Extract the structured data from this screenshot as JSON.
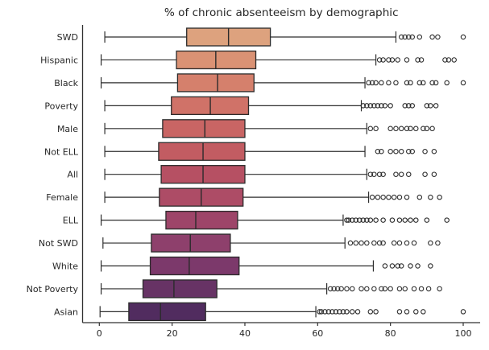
{
  "title": "% of chronic absenteeism by demographic",
  "colors": {
    "background": "#ffffff",
    "spine": "#303030",
    "whisker": "#2e2e2e",
    "box_border": "#2b2b2b",
    "text": "#262626",
    "outlier_stroke": "#2e2e2e"
  },
  "chart_data": {
    "type": "boxplot",
    "orientation": "horizontal",
    "title": "% of chronic absenteeism by demographic",
    "xlabel": "",
    "ylabel": "",
    "x_ticks": [
      0,
      20,
      40,
      60,
      80,
      100
    ],
    "xlim": [
      -5,
      105
    ],
    "grid": false,
    "legend": null,
    "categories": [
      "SWD",
      "Hispanic",
      "Black",
      "Poverty",
      "Male",
      "Not ELL",
      "All",
      "Female",
      "ELL",
      "Not SWD",
      "White",
      "Not Poverty",
      "Asian"
    ],
    "series": [
      {
        "name": "SWD",
        "whisker_low": 1.5,
        "q1": 24.0,
        "median": 35.5,
        "q3": 47.0,
        "whisker_high": 81.5,
        "color": "#dda27e",
        "outliers": [
          83,
          84,
          85,
          86,
          88,
          91.5,
          93,
          100
        ]
      },
      {
        "name": "Hispanic",
        "whisker_low": 0.5,
        "q1": 21.2,
        "median": 32.0,
        "q3": 43.0,
        "whisker_high": 76.0,
        "color": "#da9274",
        "outliers": [
          77,
          78,
          79.5,
          80.5,
          82,
          84.5,
          87.5,
          88.5,
          95,
          96,
          97.5
        ]
      },
      {
        "name": "Black",
        "whisker_low": 0.5,
        "q1": 21.5,
        "median": 32.5,
        "q3": 42.5,
        "whisker_high": 73.0,
        "color": "#d5806c",
        "outliers": [
          74,
          75,
          76,
          77.5,
          79.5,
          81.5,
          84.5,
          85.5,
          88,
          89,
          91.5,
          92.5,
          95.5,
          100
        ]
      },
      {
        "name": "Poverty",
        "whisker_low": 1.5,
        "q1": 19.8,
        "median": 30.5,
        "q3": 41.0,
        "whisker_high": 72.0,
        "color": "#d07268",
        "outliers": [
          72.5,
          73.5,
          74.5,
          75.5,
          76.5,
          77.5,
          78.5,
          80,
          84,
          85,
          86,
          90,
          91,
          92.5
        ]
      },
      {
        "name": "Male",
        "whisker_low": 1.5,
        "q1": 17.4,
        "median": 29.0,
        "q3": 40.0,
        "whisker_high": 73.5,
        "color": "#c96564",
        "outliers": [
          74.5,
          76,
          80,
          81.5,
          83,
          84.5,
          85.5,
          87,
          89,
          90,
          91.5
        ]
      },
      {
        "name": "Not ELL",
        "whisker_low": 1.5,
        "q1": 16.3,
        "median": 28.5,
        "q3": 40.0,
        "whisker_high": 73.0,
        "color": "#c25c62",
        "outliers": [
          76.5,
          77.5,
          80,
          81.5,
          83,
          85,
          86,
          89.5,
          92
        ]
      },
      {
        "name": "All",
        "whisker_low": 1.5,
        "q1": 17.0,
        "median": 28.5,
        "q3": 40.0,
        "whisker_high": 73.5,
        "color": "#b65063",
        "outliers": [
          74.5,
          75.5,
          77,
          78,
          81.5,
          83,
          85,
          89.5,
          92
        ]
      },
      {
        "name": "Female",
        "whisker_low": 1.5,
        "q1": 16.5,
        "median": 28.0,
        "q3": 39.5,
        "whisker_high": 74.0,
        "color": "#ad4c66",
        "outliers": [
          75,
          76.5,
          78,
          79.5,
          81,
          82.5,
          84.5,
          88,
          91,
          93.5
        ]
      },
      {
        "name": "ELL",
        "whisker_low": 0.5,
        "q1": 18.3,
        "median": 26.5,
        "q3": 38.0,
        "whisker_high": 67.0,
        "color": "#9e4569",
        "outliers": [
          68,
          68.5,
          69.5,
          70.5,
          71.5,
          72.5,
          73.5,
          74.5,
          76,
          78,
          80.5,
          82.5,
          84,
          85.5,
          87,
          90,
          95.5
        ]
      },
      {
        "name": "Not SWD",
        "whisker_low": 1.0,
        "q1": 14.3,
        "median": 25.0,
        "q3": 36.0,
        "whisker_high": 67.5,
        "color": "#8e406c",
        "outliers": [
          69,
          70.5,
          72,
          73.5,
          75.5,
          77,
          78,
          81,
          82.5,
          84.5,
          86.5,
          91,
          93
        ]
      },
      {
        "name": "White",
        "whisker_low": 0.5,
        "q1": 14.0,
        "median": 24.7,
        "q3": 38.4,
        "whisker_high": 75.3,
        "color": "#7c396b",
        "outliers": [
          78.5,
          80.5,
          82,
          83,
          85.5,
          87.5,
          91
        ]
      },
      {
        "name": "Not Poverty",
        "whisker_low": 0.5,
        "q1": 12.0,
        "median": 20.5,
        "q3": 32.3,
        "whisker_high": 62.5,
        "color": "#673365",
        "outliers": [
          63.5,
          64.5,
          65.5,
          66.5,
          68,
          69.5,
          72,
          73.5,
          75.5,
          77.5,
          78.5,
          80,
          82.5,
          84,
          86.5,
          88.5,
          90.5,
          93.5
        ]
      },
      {
        "name": "Asian",
        "whisker_low": 0.2,
        "q1": 8.1,
        "median": 16.8,
        "q3": 29.2,
        "whisker_high": 59.5,
        "color": "#512c5f",
        "outliers": [
          60.5,
          61,
          62,
          63,
          64,
          65,
          66,
          67,
          68,
          69.5,
          71,
          74.5,
          76,
          82.5,
          84.5,
          87,
          89,
          100
        ]
      }
    ]
  }
}
